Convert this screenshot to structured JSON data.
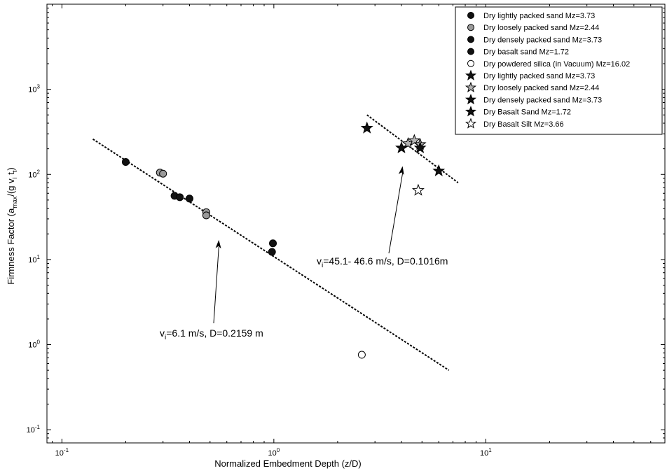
{
  "chart_data": {
    "type": "scatter",
    "title": "",
    "xlabel": "Normalized Embedment Depth (z/D)",
    "ylabel": "Firmness Factor (a_max/(g v_i t_t))",
    "xscale": "log",
    "yscale": "log",
    "xlim": [
      0.085,
      70
    ],
    "ylim": [
      0.07,
      10000
    ],
    "grid": false,
    "legend_position": "top-right",
    "x_ticks": [
      {
        "value": 0.1,
        "base": "10",
        "exp": "-1"
      },
      {
        "value": 1,
        "base": "10",
        "exp": "0"
      },
      {
        "value": 10,
        "base": "10",
        "exp": "1"
      }
    ],
    "y_ticks": [
      {
        "value": 0.1,
        "base": "10",
        "exp": "-1"
      },
      {
        "value": 1,
        "base": "10",
        "exp": "0"
      },
      {
        "value": 10,
        "base": "10",
        "exp": "1"
      },
      {
        "value": 100,
        "base": "10",
        "exp": "2"
      },
      {
        "value": 1000,
        "base": "10",
        "exp": "3"
      }
    ],
    "series": [
      {
        "name": "Dry lightly packed sand Mz=3.73",
        "marker": "circle",
        "fill": "#111111",
        "points": [
          {
            "x": 0.2,
            "y": 140
          },
          {
            "x": 0.34,
            "y": 56
          },
          {
            "x": 0.36,
            "y": 54
          },
          {
            "x": 0.4,
            "y": 52
          }
        ]
      },
      {
        "name": "Dry loosely packed sand Mz=2.44",
        "marker": "circle",
        "fill": "#9a9a9a",
        "points": [
          {
            "x": 0.29,
            "y": 105
          },
          {
            "x": 0.3,
            "y": 102
          },
          {
            "x": 0.48,
            "y": 36
          },
          {
            "x": 0.48,
            "y": 33
          }
        ]
      },
      {
        "name": "Dry densely packed sand Mz=3.73",
        "marker": "circle",
        "fill": "#111111",
        "points": [
          {
            "x": 0.99,
            "y": 15.5
          }
        ]
      },
      {
        "name": "Dry basalt sand Mz=1.72",
        "marker": "circle",
        "fill": "#111111",
        "points": [
          {
            "x": 0.98,
            "y": 12.3
          }
        ]
      },
      {
        "name": "Dry powdered silica (in Vacuum) Mz=16.02",
        "marker": "circle",
        "fill": "#ffffff",
        "points": [
          {
            "x": 2.6,
            "y": 0.76
          }
        ]
      },
      {
        "name": "Dry lightly packed sand Mz=3.73",
        "marker": "star",
        "fill": "#111111",
        "points": [
          {
            "x": 2.75,
            "y": 350
          }
        ]
      },
      {
        "name": "Dry loosely packed sand Mz=2.44",
        "marker": "star",
        "fill": "#b4b4b4",
        "points": [
          {
            "x": 4.3,
            "y": 230
          },
          {
            "x": 4.6,
            "y": 250
          },
          {
            "x": 4.9,
            "y": 225
          }
        ]
      },
      {
        "name": "Dry densely packed sand Mz=3.73",
        "marker": "star",
        "fill": "#111111",
        "points": [
          {
            "x": 4.0,
            "y": 205
          },
          {
            "x": 4.9,
            "y": 205
          }
        ]
      },
      {
        "name": "Dry Basalt Sand Mz=1.72",
        "marker": "star",
        "fill": "#111111",
        "points": [
          {
            "x": 6.0,
            "y": 110
          }
        ]
      },
      {
        "name": "Dry Basalt Silt Mz=3.66",
        "marker": "star",
        "fill": "#ffffff",
        "points": [
          {
            "x": 4.8,
            "y": 65
          }
        ]
      }
    ],
    "fit_lines": [
      {
        "x": [
          0.14,
          6.7
        ],
        "y": [
          260,
          0.5
        ]
      },
      {
        "x": [
          2.75,
          7.4
        ],
        "y": [
          500,
          80
        ]
      }
    ],
    "annotations": [
      {
        "text_prefix": "v",
        "text_sub": "i",
        "text_suffix": "=6.1 m/s, D=0.2159 m",
        "arrow_to": {
          "x": 0.55,
          "y": 17
        }
      },
      {
        "text_prefix": "v",
        "text_sub": "i",
        "text_suffix": "=45.1- 46.6 m/s, D=0.1016m",
        "arrow_to": {
          "x": 4.05,
          "y": 125
        }
      }
    ]
  }
}
